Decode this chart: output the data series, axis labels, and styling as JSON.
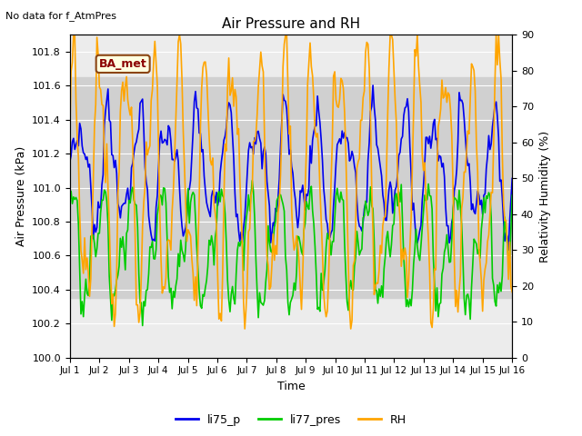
{
  "title": "Air Pressure and RH",
  "top_left_text": "No data for f_AtmPres",
  "box_label": "BA_met",
  "xlabel": "Time",
  "ylabel_left": "Air Pressure (kPa)",
  "ylabel_right": "Relativity Humidity (%)",
  "ylim_left": [
    100.0,
    101.9
  ],
  "ylim_right": [
    0,
    90
  ],
  "yticks_left": [
    100.0,
    100.2,
    100.4,
    100.6,
    100.8,
    101.0,
    101.2,
    101.4,
    101.6,
    101.8
  ],
  "yticks_right": [
    0,
    10,
    20,
    30,
    40,
    50,
    60,
    70,
    80,
    90
  ],
  "xtick_labels": [
    "Jul 1",
    "Jul 2",
    "Jul 3",
    "Jul 4",
    "Jul 5",
    "Jul 6",
    "Jul 7",
    "Jul 8",
    "Jul 9",
    "Jul 10",
    "Jul 11",
    "Jul 12",
    "Jul 13",
    "Jul 14",
    "Jul 15",
    "Jul 16"
  ],
  "color_blue": "#0000EE",
  "color_green": "#00CC00",
  "color_orange": "#FFA500",
  "legend_labels": [
    "li75_p",
    "li77_pres",
    "RH"
  ],
  "background_color": "#ffffff",
  "plot_bg_color": "#ececec",
  "shaded_band_lo": 100.35,
  "shaded_band_hi": 101.65,
  "shaded_band_color": "#d0d0d0",
  "line_width": 1.2
}
